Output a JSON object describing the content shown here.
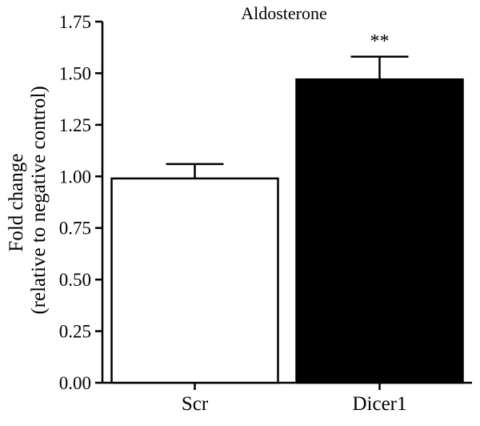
{
  "chart_data": {
    "type": "bar",
    "title": "Aldosterone",
    "ylabel_lines": [
      "Fold change",
      "(relative to negative control)"
    ],
    "xlabel": "",
    "categories": [
      "Scr",
      "Dicer1"
    ],
    "values": [
      0.99,
      1.47
    ],
    "errors": [
      0.07,
      0.11
    ],
    "bar_fills": [
      "#ffffff",
      "#000000"
    ],
    "annotations": [
      "",
      "**"
    ],
    "ylim": [
      0,
      1.75
    ],
    "yticks": [
      "0.00",
      "0.25",
      "0.50",
      "0.75",
      "1.00",
      "1.25",
      "1.50",
      "1.75"
    ],
    "grid": false
  }
}
